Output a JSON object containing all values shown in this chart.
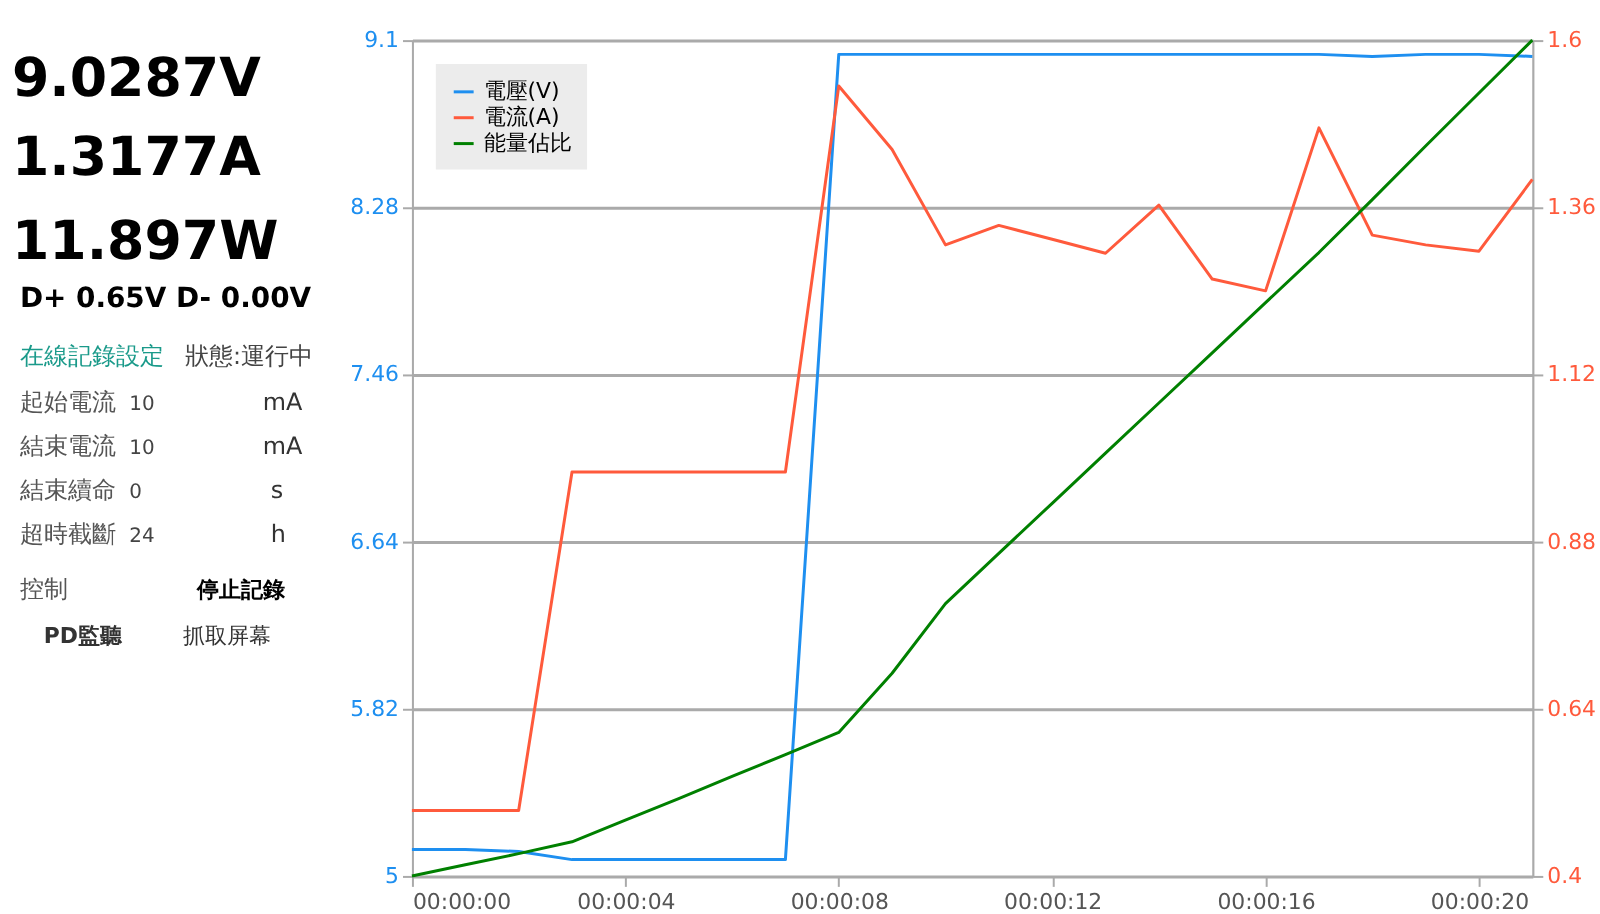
{
  "chart_data": {
    "type": "line",
    "x": [
      0,
      1,
      2,
      3,
      4,
      5,
      6,
      7,
      8,
      9,
      10,
      11,
      12,
      13,
      14,
      15,
      16,
      17,
      18,
      19,
      20,
      21
    ],
    "series": [
      {
        "name": "電壓(V)",
        "color": "#1e8ff0",
        "axis": "y",
        "values": [
          5.13,
          5.13,
          5.12,
          5.08,
          5.08,
          5.08,
          5.08,
          5.08,
          9.03,
          9.03,
          9.03,
          9.03,
          9.03,
          9.03,
          9.03,
          9.03,
          9.03,
          9.03,
          9.02,
          9.03,
          9.03,
          9.02
        ]
      },
      {
        "name": "電流(A)",
        "color": "#ff5a3c",
        "axis": "y2",
        "values": [
          0.494,
          0.494,
          0.494,
          0.98,
          0.98,
          0.98,
          0.98,
          0.98,
          1.534,
          1.443,
          1.306,
          1.334,
          1.314,
          1.294,
          1.363,
          1.257,
          1.24,
          1.474,
          1.32,
          1.306,
          1.297,
          1.4
        ]
      },
      {
        "name": "能量佔比",
        "color": "#008000",
        "axis": "y2",
        "values": [
          0.4,
          0.416,
          0.432,
          0.449,
          0.48,
          0.511,
          0.543,
          0.574,
          0.606,
          0.691,
          0.791,
          0.863,
          0.935,
          1.007,
          1.079,
          1.151,
          1.223,
          1.295,
          1.371,
          1.448,
          1.524,
          1.6
        ]
      }
    ],
    "xlim": [
      0,
      21
    ],
    "xticks": [
      {
        "value": 0,
        "label": "00:00:00"
      },
      {
        "value": 4,
        "label": "00:00:04"
      },
      {
        "value": 8,
        "label": "00:00:08"
      },
      {
        "value": 12,
        "label": "00:00:12"
      },
      {
        "value": 16,
        "label": "00:00:16"
      },
      {
        "value": 20,
        "label": "00:00:20"
      }
    ],
    "ylim": [
      5,
      9.1
    ],
    "yticks": [
      5,
      5.82,
      6.64,
      7.46,
      8.28,
      9.1
    ],
    "y2lim": [
      0.4,
      1.6
    ],
    "y2ticks": [
      0.4,
      0.64,
      0.88,
      1.12,
      1.36,
      1.6
    ],
    "grid": "y",
    "legend": "top left",
    "annotations": [
      "9.0287V",
      "1.3177A",
      "11.897W",
      "D+ 0.65V   D- 0.00V",
      "在線記錄設定",
      "狀態:運行中",
      "起始電流",
      "10",
      "mA",
      "結束電流",
      "10",
      "mA",
      "結束續命",
      "0",
      "s",
      "超時截斷",
      "24",
      "h",
      "控制",
      "停止記錄",
      "PD監聽",
      "抓取屏幕"
    ]
  }
}
